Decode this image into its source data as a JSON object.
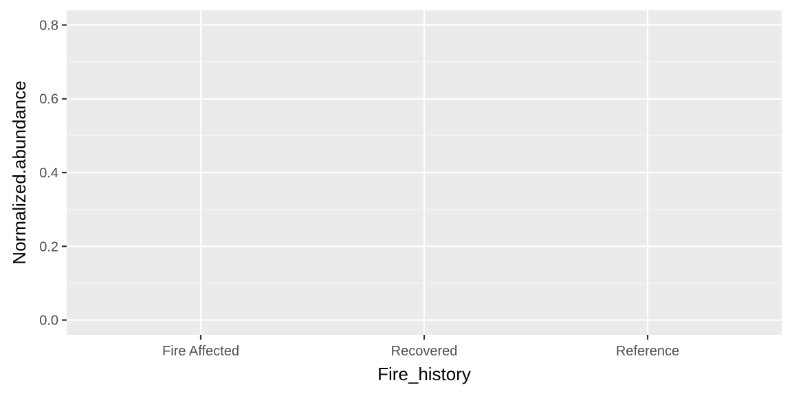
{
  "chart_data": {
    "type": "scatter",
    "title": "",
    "xlabel": "Fire_history",
    "ylabel": "Normalized.abundance",
    "categories": [
      "Fire Affected",
      "Recovered",
      "Reference"
    ],
    "yticks": [
      0.0,
      0.2,
      0.4,
      0.6,
      0.8
    ],
    "ytick_labels": [
      "0.0",
      "0.2",
      "0.4",
      "0.6",
      "0.8"
    ],
    "ylim": [
      -0.04,
      0.84
    ],
    "series": [],
    "grid": true,
    "legend": "none"
  },
  "colors": {
    "panel_background": "#ebebeb",
    "grid_major": "#ffffff",
    "grid_minor": "#f5f5f5",
    "tick_mark": "#333333",
    "tick_text": "#4d4d4d",
    "axis_title": "#000000"
  }
}
